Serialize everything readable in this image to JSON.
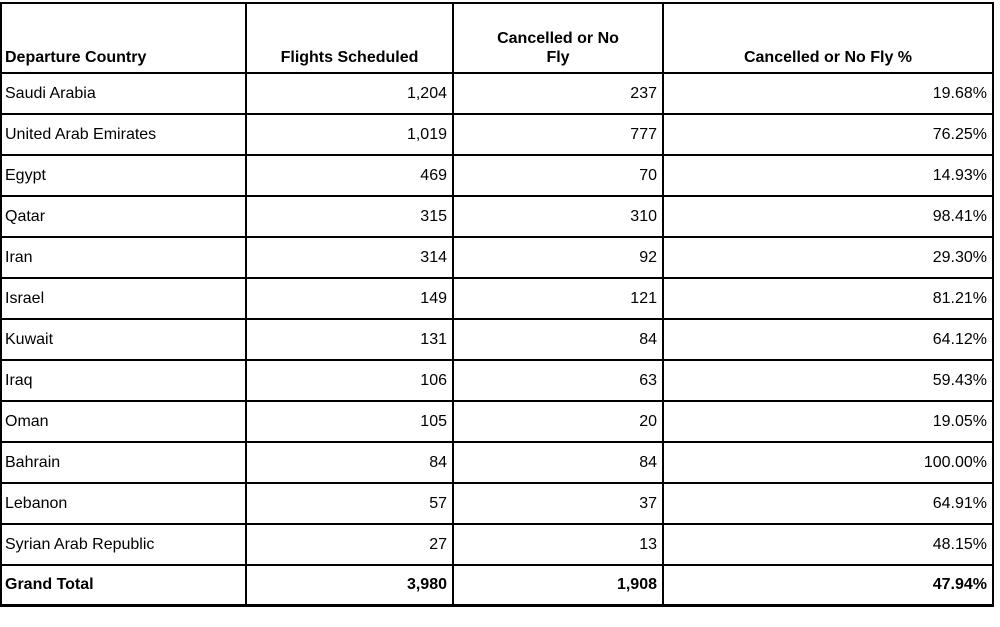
{
  "table": {
    "columns": [
      {
        "label": "Departure Country"
      },
      {
        "label": "Flights Scheduled"
      },
      {
        "label": "Cancelled or No\nFly"
      },
      {
        "label": "Cancelled or No Fly %"
      }
    ],
    "rows": [
      {
        "country": "Saudi Arabia",
        "scheduled": "1,204",
        "cancelled": "237",
        "pct": "19.68%"
      },
      {
        "country": "United Arab Emirates",
        "scheduled": "1,019",
        "cancelled": "777",
        "pct": "76.25%"
      },
      {
        "country": "Egypt",
        "scheduled": "469",
        "cancelled": "70",
        "pct": "14.93%"
      },
      {
        "country": "Qatar",
        "scheduled": "315",
        "cancelled": "310",
        "pct": "98.41%"
      },
      {
        "country": "Iran",
        "scheduled": "314",
        "cancelled": "92",
        "pct": "29.30%"
      },
      {
        "country": "Israel",
        "scheduled": "149",
        "cancelled": "121",
        "pct": "81.21%"
      },
      {
        "country": "Kuwait",
        "scheduled": "131",
        "cancelled": "84",
        "pct": "64.12%"
      },
      {
        "country": "Iraq",
        "scheduled": "106",
        "cancelled": "63",
        "pct": "59.43%"
      },
      {
        "country": "Oman",
        "scheduled": "105",
        "cancelled": "20",
        "pct": "19.05%"
      },
      {
        "country": "Bahrain",
        "scheduled": "84",
        "cancelled": "84",
        "pct": "100.00%"
      },
      {
        "country": "Lebanon",
        "scheduled": "57",
        "cancelled": "37",
        "pct": "64.91%"
      },
      {
        "country": "Syrian Arab Republic",
        "scheduled": "27",
        "cancelled": "13",
        "pct": "48.15%"
      }
    ],
    "total": {
      "country": "Grand Total",
      "scheduled": "3,980",
      "cancelled": "1,908",
      "pct": "47.94%"
    }
  },
  "colors": {
    "border": "#000000",
    "text": "#000000",
    "background": "#ffffff"
  },
  "chart_data": {
    "type": "table",
    "columns": [
      "Departure Country",
      "Flights Scheduled",
      "Cancelled or No Fly",
      "Cancelled or No Fly %"
    ],
    "rows": [
      [
        "Saudi Arabia",
        1204,
        237,
        "19.68%"
      ],
      [
        "United Arab Emirates",
        1019,
        777,
        "76.25%"
      ],
      [
        "Egypt",
        469,
        70,
        "14.93%"
      ],
      [
        "Qatar",
        315,
        310,
        "98.41%"
      ],
      [
        "Iran",
        314,
        92,
        "29.30%"
      ],
      [
        "Israel",
        149,
        121,
        "81.21%"
      ],
      [
        "Kuwait",
        131,
        84,
        "64.12%"
      ],
      [
        "Iraq",
        106,
        63,
        "59.43%"
      ],
      [
        "Oman",
        105,
        20,
        "19.05%"
      ],
      [
        "Bahrain",
        84,
        84,
        "100.00%"
      ],
      [
        "Lebanon",
        57,
        37,
        "64.91%"
      ],
      [
        "Syrian Arab Republic",
        27,
        13,
        "48.15%"
      ]
    ],
    "grand_total": [
      "Grand Total",
      3980,
      1908,
      "47.94%"
    ]
  }
}
